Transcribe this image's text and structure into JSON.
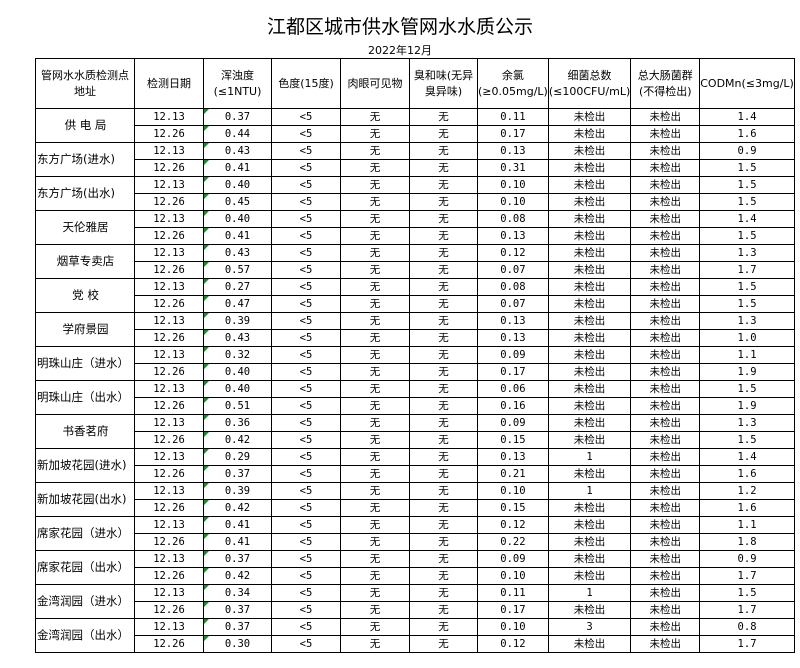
{
  "title": "江都区城市供水管网水水质公示",
  "subtitle": "2022年12月",
  "headers": [
    "管网水水质检测点地址",
    "检测日期",
    "浑浊度(≤1NTU)",
    "色度(15度)",
    "肉眼可见物",
    "臭和味(无异臭异味)",
    "余氯(≥0.05mg/L)",
    "细菌总数(≤100CFU/mL)",
    "总大肠菌群(不得检出)",
    "CODMn(≤3mg/L)"
  ],
  "sites": [
    {
      "name": "供 电 局",
      "rows": [
        [
          "12.13",
          "0.37",
          "<5",
          "无",
          "无",
          "0.11",
          "未检出",
          "未检出",
          "1.4"
        ],
        [
          "12.26",
          "0.44",
          "<5",
          "无",
          "无",
          "0.17",
          "未检出",
          "未检出",
          "1.6"
        ]
      ]
    },
    {
      "name": "东方广场(进水)",
      "rows": [
        [
          "12.13",
          "0.43",
          "<5",
          "无",
          "无",
          "0.13",
          "未检出",
          "未检出",
          "0.9"
        ],
        [
          "12.26",
          "0.41",
          "<5",
          "无",
          "无",
          "0.31",
          "未检出",
          "未检出",
          "1.5"
        ]
      ]
    },
    {
      "name": "东方广场(出水)",
      "rows": [
        [
          "12.13",
          "0.40",
          "<5",
          "无",
          "无",
          "0.10",
          "未检出",
          "未检出",
          "1.5"
        ],
        [
          "12.26",
          "0.45",
          "<5",
          "无",
          "无",
          "0.10",
          "未检出",
          "未检出",
          "1.5"
        ]
      ]
    },
    {
      "name": "天伦雅居",
      "rows": [
        [
          "12.13",
          "0.40",
          "<5",
          "无",
          "无",
          "0.08",
          "未检出",
          "未检出",
          "1.4"
        ],
        [
          "12.26",
          "0.41",
          "<5",
          "无",
          "无",
          "0.13",
          "未检出",
          "未检出",
          "1.5"
        ]
      ]
    },
    {
      "name": "烟草专卖店",
      "rows": [
        [
          "12.13",
          "0.43",
          "<5",
          "无",
          "无",
          "0.12",
          "未检出",
          "未检出",
          "1.3"
        ],
        [
          "12.26",
          "0.57",
          "<5",
          "无",
          "无",
          "0.07",
          "未检出",
          "未检出",
          "1.7"
        ]
      ]
    },
    {
      "name": "党  校",
      "rows": [
        [
          "12.13",
          "0.27",
          "<5",
          "无",
          "无",
          "0.08",
          "未检出",
          "未检出",
          "1.5"
        ],
        [
          "12.26",
          "0.47",
          "<5",
          "无",
          "无",
          "0.07",
          "未检出",
          "未检出",
          "1.5"
        ]
      ]
    },
    {
      "name": "学府景园",
      "rows": [
        [
          "12.13",
          "0.39",
          "<5",
          "无",
          "无",
          "0.13",
          "未检出",
          "未检出",
          "1.3"
        ],
        [
          "12.26",
          "0.43",
          "<5",
          "无",
          "无",
          "0.13",
          "未检出",
          "未检出",
          "1.0"
        ]
      ]
    },
    {
      "name": "明珠山庄（进水）",
      "rows": [
        [
          "12.13",
          "0.32",
          "<5",
          "无",
          "无",
          "0.09",
          "未检出",
          "未检出",
          "1.1"
        ],
        [
          "12.26",
          "0.40",
          "<5",
          "无",
          "无",
          "0.17",
          "未检出",
          "未检出",
          "1.9"
        ]
      ]
    },
    {
      "name": "明珠山庄（出水）",
      "rows": [
        [
          "12.13",
          "0.40",
          "<5",
          "无",
          "无",
          "0.06",
          "未检出",
          "未检出",
          "1.5"
        ],
        [
          "12.26",
          "0.51",
          "<5",
          "无",
          "无",
          "0.16",
          "未检出",
          "未检出",
          "1.9"
        ]
      ]
    },
    {
      "name": "书香茗府",
      "rows": [
        [
          "12.13",
          "0.36",
          "<5",
          "无",
          "无",
          "0.09",
          "未检出",
          "未检出",
          "1.3"
        ],
        [
          "12.26",
          "0.42",
          "<5",
          "无",
          "无",
          "0.15",
          "未检出",
          "未检出",
          "1.5"
        ]
      ]
    },
    {
      "name": "新加坡花园(进水)",
      "rows": [
        [
          "12.13",
          "0.29",
          "<5",
          "无",
          "无",
          "0.13",
          "1",
          "未检出",
          "1.4"
        ],
        [
          "12.26",
          "0.37",
          "<5",
          "无",
          "无",
          "0.21",
          "未检出",
          "未检出",
          "1.6"
        ]
      ]
    },
    {
      "name": "新加坡花园(出水)",
      "rows": [
        [
          "12.13",
          "0.39",
          "<5",
          "无",
          "无",
          "0.10",
          "1",
          "未检出",
          "1.2"
        ],
        [
          "12.26",
          "0.42",
          "<5",
          "无",
          "无",
          "0.15",
          "未检出",
          "未检出",
          "1.6"
        ]
      ]
    },
    {
      "name": "席家花园（进水）",
      "rows": [
        [
          "12.13",
          "0.41",
          "<5",
          "无",
          "无",
          "0.12",
          "未检出",
          "未检出",
          "1.1"
        ],
        [
          "12.26",
          "0.41",
          "<5",
          "无",
          "无",
          "0.22",
          "未检出",
          "未检出",
          "1.8"
        ]
      ]
    },
    {
      "name": "席家花园（出水）",
      "rows": [
        [
          "12.13",
          "0.37",
          "<5",
          "无",
          "无",
          "0.09",
          "未检出",
          "未检出",
          "0.9"
        ],
        [
          "12.26",
          "0.42",
          "<5",
          "无",
          "无",
          "0.10",
          "未检出",
          "未检出",
          "1.7"
        ]
      ]
    },
    {
      "name": "金湾润园（进水）",
      "rows": [
        [
          "12.13",
          "0.34",
          "<5",
          "无",
          "无",
          "0.11",
          "1",
          "未检出",
          "1.5"
        ],
        [
          "12.26",
          "0.37",
          "<5",
          "无",
          "无",
          "0.17",
          "未检出",
          "未检出",
          "1.7"
        ]
      ]
    },
    {
      "name": "金湾润园（出水）",
      "rows": [
        [
          "12.13",
          "0.37",
          "<5",
          "无",
          "无",
          "0.10",
          "3",
          "未检出",
          "0.8"
        ],
        [
          "12.26",
          "0.30",
          "<5",
          "无",
          "无",
          "0.12",
          "未检出",
          "未检出",
          "1.7"
        ]
      ]
    }
  ]
}
